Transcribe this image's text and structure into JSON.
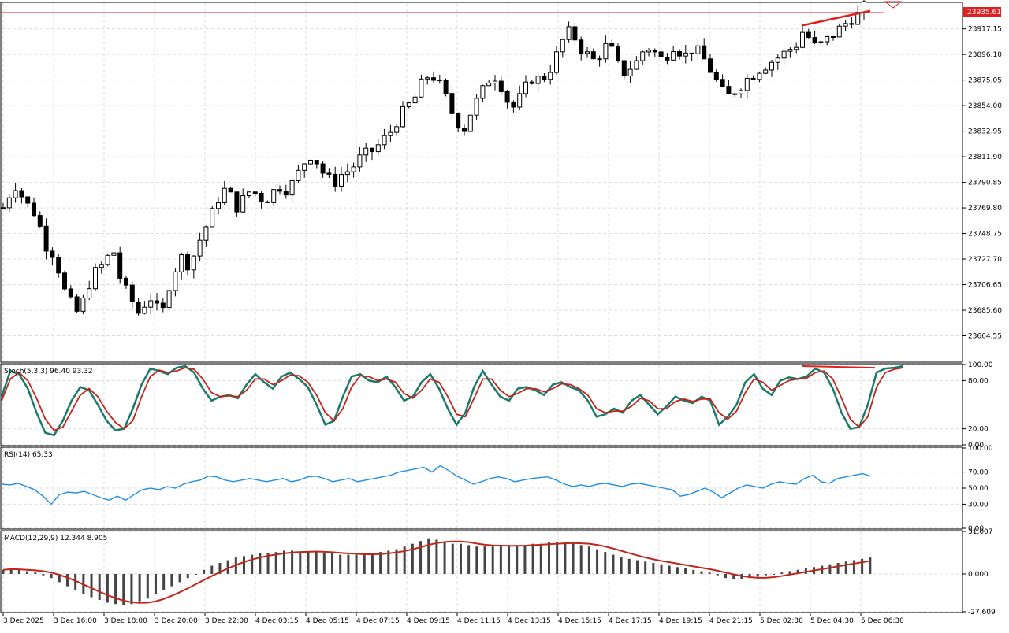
{
  "chart_data": [
    {
      "type": "candlestick",
      "symbol_price_label": "23935.61",
      "ylim": [
        23643.5,
        23938.3
      ],
      "yticks": [
        "23917.15",
        "23896.10",
        "23875.05",
        "23854.00",
        "23832.95",
        "23811.90",
        "23790.85",
        "23769.80",
        "23748.75",
        "23727.70",
        "23706.65",
        "23685.60",
        "23664.55"
      ],
      "ytick_values": [
        23917.15,
        23896.1,
        23875.05,
        23854.0,
        23832.95,
        23811.9,
        23790.85,
        23769.8,
        23748.75,
        23727.7,
        23706.65,
        23685.6,
        23664.55
      ],
      "x_labels": [
        "3 Dec 2025",
        "3 Dec 16:00",
        "3 Dec 18:00",
        "3 Dec 20:00",
        "3 Dec 22:00",
        "4 Dec 03:15",
        "4 Dec 05:15",
        "4 Dec 07:15",
        "4 Dec 09:15",
        "4 Dec 11:15",
        "4 Dec 13:15",
        "4 Dec 15:15",
        "4 Dec 17:15",
        "4 Dec 19:15",
        "4 Dec 21:15",
        "5 Dec 02:30",
        "5 Dec 04:30",
        "5 Dec 06:30"
      ],
      "close_path": [
        [
          0,
          23770
        ],
        [
          4,
          23782
        ],
        [
          8,
          23790
        ],
        [
          12,
          23775
        ],
        [
          16,
          23770
        ],
        [
          20,
          23762
        ],
        [
          24,
          23740
        ],
        [
          28,
          23735
        ],
        [
          32,
          23720
        ],
        [
          36,
          23700
        ],
        [
          40,
          23690
        ],
        [
          44,
          23682
        ],
        [
          48,
          23700
        ],
        [
          52,
          23715
        ],
        [
          56,
          23720
        ],
        [
          60,
          23728
        ],
        [
          64,
          23735
        ],
        [
          68,
          23712
        ],
        [
          72,
          23700
        ],
        [
          76,
          23690
        ],
        [
          80,
          23680
        ],
        [
          84,
          23700
        ],
        [
          88,
          23690
        ],
        [
          92,
          23680
        ],
        [
          96,
          23705
        ],
        [
          100,
          23720
        ],
        [
          104,
          23730
        ],
        [
          108,
          23722
        ],
        [
          112,
          23735
        ],
        [
          116,
          23750
        ],
        [
          120,
          23760
        ],
        [
          124,
          23775
        ],
        [
          128,
          23785
        ],
        [
          132,
          23780
        ],
        [
          136,
          23770
        ],
        [
          140,
          23778
        ],
        [
          144,
          23785
        ],
        [
          148,
          23780
        ],
        [
          152,
          23775
        ],
        [
          156,
          23782
        ],
        [
          160,
          23788
        ],
        [
          164,
          23785
        ],
        [
          168,
          23790
        ],
        [
          172,
          23800
        ],
        [
          176,
          23810
        ],
        [
          180,
          23815
        ],
        [
          184,
          23802
        ],
        [
          188,
          23795
        ],
        [
          192,
          23790
        ],
        [
          196,
          23797
        ],
        [
          200,
          23800
        ],
        [
          204,
          23805
        ],
        [
          208,
          23812
        ],
        [
          212,
          23815
        ],
        [
          216,
          23818
        ],
        [
          220,
          23825
        ],
        [
          224,
          23830
        ],
        [
          228,
          23840
        ],
        [
          232,
          23848
        ],
        [
          236,
          23855
        ],
        [
          240,
          23862
        ],
        [
          244,
          23875
        ],
        [
          248,
          23880
        ],
        [
          252,
          23875
        ],
        [
          256,
          23865
        ],
        [
          260,
          23850
        ],
        [
          264,
          23840
        ],
        [
          268,
          23835
        ],
        [
          272,
          23850
        ],
        [
          276,
          23860
        ],
        [
          280,
          23870
        ],
        [
          284,
          23880
        ],
        [
          288,
          23875
        ],
        [
          292,
          23860
        ],
        [
          296,
          23852
        ],
        [
          300,
          23860
        ],
        [
          304,
          23870
        ],
        [
          308,
          23878
        ],
        [
          312,
          23875
        ],
        [
          316,
          23880
        ],
        [
          320,
          23890
        ],
        [
          324,
          23905
        ],
        [
          328,
          23915
        ],
        [
          332,
          23910
        ],
        [
          336,
          23900
        ],
        [
          340,
          23895
        ],
        [
          344,
          23890
        ],
        [
          348,
          23900
        ],
        [
          352,
          23905
        ],
        [
          356,
          23890
        ],
        [
          360,
          23880
        ],
        [
          364,
          23885
        ],
        [
          368,
          23890
        ],
        [
          372,
          23900
        ],
        [
          376,
          23902
        ],
        [
          380,
          23895
        ],
        [
          384,
          23890
        ],
        [
          388,
          23905
        ],
        [
          392,
          23900
        ],
        [
          396,
          23895
        ],
        [
          400,
          23900
        ],
        [
          404,
          23898
        ],
        [
          408,
          23890
        ],
        [
          412,
          23880
        ],
        [
          416,
          23870
        ],
        [
          420,
          23860
        ],
        [
          424,
          23865
        ],
        [
          428,
          23870
        ],
        [
          432,
          23876
        ],
        [
          436,
          23880
        ],
        [
          440,
          23885
        ],
        [
          444,
          23888
        ],
        [
          448,
          23892
        ],
        [
          452,
          23895
        ],
        [
          456,
          23900
        ],
        [
          460,
          23902
        ],
        [
          464,
          23915
        ],
        [
          468,
          23910
        ],
        [
          472,
          23902
        ],
        [
          476,
          23905
        ],
        [
          480,
          23910
        ],
        [
          484,
          23915
        ],
        [
          488,
          23920
        ],
        [
          492,
          23925
        ],
        [
          496,
          23928
        ],
        [
          500,
          23935
        ]
      ]
    },
    {
      "type": "line",
      "title": "Stoch(5,3,3) 96.40 93.32",
      "ylim": [
        0,
        100
      ],
      "yticks": [
        "100.00",
        "80.00",
        "20.00",
        "0.00"
      ],
      "ytick_values": [
        100,
        80,
        20,
        0
      ],
      "series": [
        {
          "color": "#1a7a6b",
          "values": [
            60,
            92,
            88,
            70,
            40,
            15,
            12,
            30,
            55,
            72,
            68,
            50,
            30,
            18,
            20,
            45,
            75,
            95,
            92,
            88,
            96,
            98,
            90,
            70,
            55,
            60,
            62,
            58,
            75,
            88,
            78,
            70,
            85,
            90,
            82,
            72,
            50,
            25,
            30,
            60,
            85,
            88,
            80,
            78,
            85,
            72,
            55,
            60,
            78,
            88,
            70,
            45,
            25,
            40,
            72,
            92,
            75,
            60,
            55,
            70,
            72,
            68,
            62,
            75,
            78,
            72,
            68,
            55,
            35,
            38,
            45,
            40,
            55,
            62,
            50,
            38,
            48,
            60,
            55,
            52,
            60,
            55,
            25,
            35,
            50,
            78,
            88,
            70,
            62,
            80,
            84,
            82,
            85,
            95,
            90,
            70,
            40,
            20,
            22,
            50,
            90,
            95,
            96,
            98
          ]
        },
        {
          "color": "#c0261c",
          "values": [
            55,
            82,
            90,
            80,
            58,
            32,
            18,
            22,
            42,
            62,
            70,
            60,
            42,
            28,
            20,
            30,
            60,
            85,
            93,
            90,
            92,
            96,
            94,
            82,
            65,
            60,
            61,
            60,
            68,
            82,
            82,
            75,
            80,
            87,
            86,
            78,
            62,
            40,
            30,
            45,
            72,
            86,
            85,
            80,
            82,
            78,
            64,
            58,
            68,
            82,
            78,
            60,
            38,
            35,
            58,
            82,
            82,
            68,
            60,
            64,
            70,
            70,
            66,
            70,
            76,
            75,
            70,
            62,
            45,
            40,
            42,
            42,
            48,
            58,
            55,
            45,
            45,
            54,
            57,
            54,
            57,
            57,
            40,
            32,
            42,
            65,
            82,
            78,
            68,
            74,
            80,
            82,
            83,
            90,
            92,
            82,
            58,
            32,
            22,
            35,
            72,
            90,
            94,
            96
          ]
        },
        {
          "color": "#e02020",
          "values": [
            98,
            97,
            97,
            96
          ]
        }
      ]
    },
    {
      "type": "line",
      "title": "RSI(14) 65.33",
      "ylim": [
        0,
        100
      ],
      "yticks": [
        "100.00",
        "70.00",
        "50.00",
        "30.00",
        "0.00"
      ],
      "ytick_values": [
        100,
        70,
        50,
        30,
        0
      ],
      "series": [
        {
          "color": "#1f8ee6",
          "values": [
            55,
            54,
            56,
            52,
            48,
            40,
            30,
            42,
            45,
            44,
            46,
            42,
            38,
            35,
            40,
            35,
            42,
            48,
            50,
            48,
            52,
            50,
            55,
            58,
            60,
            65,
            64,
            60,
            58,
            60,
            62,
            60,
            58,
            60,
            62,
            58,
            60,
            64,
            65,
            62,
            58,
            60,
            62,
            58,
            60,
            62,
            64,
            66,
            70,
            72,
            74,
            76,
            70,
            78,
            72,
            65,
            60,
            55,
            58,
            62,
            64,
            62,
            58,
            60,
            62,
            63,
            64,
            60,
            55,
            52,
            54,
            52,
            55,
            56,
            54,
            52,
            55,
            56,
            54,
            52,
            50,
            48,
            40,
            42,
            46,
            50,
            45,
            38,
            44,
            50,
            54,
            52,
            50,
            55,
            58,
            56,
            55,
            62,
            66,
            58,
            56,
            62,
            64,
            66,
            68,
            65
          ]
        }
      ]
    },
    {
      "type": "bar",
      "title": "MACD(12,29,9) 12.344 8.905",
      "ylim": [
        -27.609,
        31.007
      ],
      "yticks": [
        "31.007",
        "0.000",
        "-27.609"
      ],
      "ytick_values": [
        31.007,
        0,
        -27.609
      ],
      "values": [
        3,
        4,
        3,
        2,
        1,
        -1,
        -3,
        -6,
        -9,
        -12,
        -15,
        -17,
        -19,
        -21,
        -22,
        -23,
        -22,
        -20,
        -18,
        -15,
        -12,
        -9,
        -6,
        -3,
        0,
        3,
        6,
        8,
        10,
        12,
        13,
        14,
        15,
        15,
        16,
        17,
        17,
        16,
        16,
        16,
        15,
        15,
        14,
        14,
        14,
        14,
        15,
        16,
        17,
        18,
        20,
        22,
        24,
        26,
        25,
        23,
        22,
        22,
        21,
        20,
        20,
        20,
        21,
        21,
        21,
        21,
        22,
        22,
        23,
        23,
        23,
        22,
        21,
        20,
        18,
        16,
        14,
        12,
        11,
        10,
        9,
        8,
        7,
        6,
        5,
        4,
        3,
        2,
        1,
        -1,
        -3,
        -4,
        -4,
        -3,
        -2,
        -1,
        0,
        1,
        2,
        3,
        4,
        5,
        6,
        7,
        8,
        9,
        10,
        11,
        12
      ]
    }
  ]
}
